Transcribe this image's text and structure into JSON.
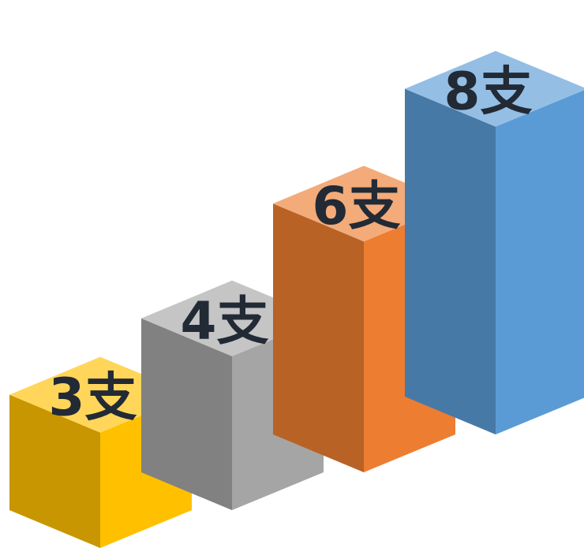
{
  "chart_data": {
    "type": "bar",
    "style": "3d",
    "title": "",
    "xlabel": "",
    "ylabel": "",
    "categories": [
      "",
      "",
      "",
      ""
    ],
    "values": [
      3,
      4,
      6,
      8
    ],
    "data_labels": [
      "3支",
      "4支",
      "6支",
      "8支"
    ],
    "colors": [
      "#ffc000",
      "#a5a5a5",
      "#ed7d31",
      "#5b9bd5"
    ],
    "grid": false,
    "legend": "none"
  }
}
